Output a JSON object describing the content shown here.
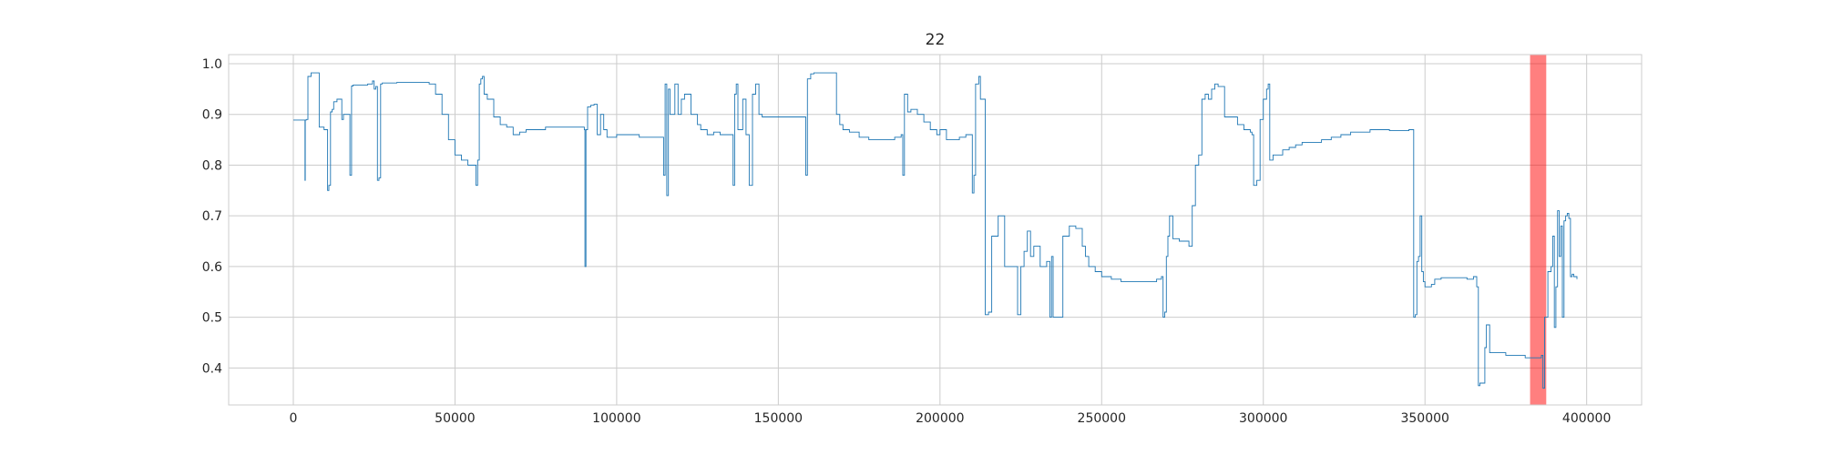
{
  "chart_data": {
    "type": "line",
    "title": "22",
    "xlabel": "",
    "ylabel": "",
    "xlim": [
      -20000,
      417000
    ],
    "ylim": [
      0.327,
      1.018
    ],
    "xticks": [
      0,
      50000,
      100000,
      150000,
      200000,
      250000,
      300000,
      350000,
      400000
    ],
    "xtick_labels": [
      "0",
      "50000",
      "100000",
      "150000",
      "200000",
      "250000",
      "300000",
      "350000",
      "400000"
    ],
    "yticks": [
      0.4,
      0.5,
      0.6,
      0.7,
      0.8,
      0.9,
      1.0
    ],
    "ytick_labels": [
      "0.4",
      "0.5",
      "0.6",
      "0.7",
      "0.8",
      "0.9",
      "1.0"
    ],
    "grid": true,
    "series_color": "#1f77b4",
    "highlight": {
      "x_start": 382500,
      "x_end": 387500,
      "color": "#ff0000",
      "opacity": 0.5
    },
    "series": [
      {
        "x": [
          0,
          3500,
          3600,
          3700,
          4000,
          4500,
          5500,
          7500,
          8000,
          9500,
          10500,
          10600,
          11000,
          11500,
          12000,
          12500,
          13500,
          15000,
          15500,
          17500,
          18000,
          18500,
          19000,
          19500,
          21000,
          23000,
          24500,
          25000,
          25500,
          26000,
          26500,
          27000,
          27500,
          28000,
          32000,
          36000,
          39000,
          42000,
          44000,
          46000,
          48000,
          50000,
          52000,
          54000,
          56000,
          56500,
          57000,
          57500,
          58000,
          58500,
          59000,
          60000,
          62000,
          64000,
          66000,
          68000,
          70000,
          72000,
          75000,
          78000,
          82000,
          86000,
          89000,
          90000,
          90200,
          90500,
          91000,
          92000,
          93000,
          94000,
          95000,
          96000,
          97000,
          100000,
          103000,
          107000,
          110000,
          114000,
          114500,
          115000,
          115500,
          116000,
          116500,
          117000,
          118000,
          119000,
          120000,
          121000,
          123000,
          125000,
          126000,
          128000,
          130000,
          132000,
          134000,
          136000,
          136500,
          137000,
          137500,
          138000,
          139000,
          140000,
          141000,
          142000,
          143000,
          144000,
          145000,
          146000,
          147000,
          148000,
          150000,
          153000,
          156000,
          158000,
          158500,
          159000,
          160000,
          161000,
          163000,
          165000,
          167000,
          168000,
          169000,
          170000,
          172000,
          175000,
          178000,
          182000,
          186000,
          188000,
          188500,
          189000,
          190000,
          191000,
          193000,
          195000,
          197000,
          199000,
          200000,
          202000,
          204000,
          206000,
          208000,
          209000,
          209500,
          210000,
          210500,
          211000,
          212000,
          212500,
          213000,
          214000,
          215000,
          216000,
          218000,
          220000,
          222000,
          222500,
          223000,
          224000,
          225000,
          226000,
          227000,
          228000,
          229000,
          230000,
          231000,
          232000,
          233000,
          234000,
          234500,
          235000,
          236000,
          238000,
          240000,
          242000,
          243000,
          244000,
          245000,
          246000,
          248000,
          250000,
          253000,
          256000,
          259000,
          262000,
          265000,
          267000,
          268000,
          268500,
          269000,
          269500,
          270000,
          270500,
          271000,
          272000,
          274000,
          276000,
          277000,
          278000,
          279000,
          280000,
          281000,
          282000,
          283000,
          284000,
          285000,
          286000,
          288000,
          290000,
          292000,
          294000,
          296000,
          296500,
          297000,
          298000,
          299000,
          300000,
          301000,
          301500,
          302000,
          303000,
          304000,
          306000,
          308000,
          310000,
          312000,
          315000,
          318000,
          321000,
          324000,
          327000,
          330000,
          333000,
          336000,
          339000,
          342000,
          345000,
          346000,
          346500,
          347000,
          347500,
          348000,
          348500,
          349000,
          349500,
          350000,
          351000,
          352000,
          353000,
          355000,
          358000,
          361000,
          363000,
          364000,
          365000,
          366000,
          366500,
          367000,
          368000,
          368500,
          369000,
          370000,
          372000,
          375000,
          378000,
          381000,
          382500,
          384000,
          385000,
          386000,
          386500,
          387000,
          388000,
          389000,
          389500,
          390000,
          390500,
          391000,
          391500,
          392000,
          392500,
          393000,
          393500,
          394000,
          394500,
          395000,
          395500,
          396000,
          397000
        ],
        "y": [
          0.889,
          0.889,
          0.77,
          0.889,
          0.89,
          0.975,
          0.982,
          0.982,
          0.875,
          0.87,
          0.87,
          0.75,
          0.76,
          0.905,
          0.91,
          0.925,
          0.93,
          0.89,
          0.9,
          0.78,
          0.956,
          0.958,
          0.958,
          0.958,
          0.958,
          0.96,
          0.966,
          0.95,
          0.955,
          0.77,
          0.775,
          0.96,
          0.962,
          0.962,
          0.963,
          0.963,
          0.963,
          0.96,
          0.94,
          0.9,
          0.85,
          0.82,
          0.81,
          0.8,
          0.8,
          0.76,
          0.81,
          0.96,
          0.97,
          0.975,
          0.94,
          0.93,
          0.895,
          0.88,
          0.875,
          0.86,
          0.865,
          0.87,
          0.87,
          0.875,
          0.875,
          0.875,
          0.875,
          0.87,
          0.6,
          0.87,
          0.915,
          0.918,
          0.92,
          0.86,
          0.9,
          0.87,
          0.855,
          0.86,
          0.86,
          0.855,
          0.855,
          0.855,
          0.78,
          0.96,
          0.74,
          0.95,
          0.9,
          0.9,
          0.96,
          0.9,
          0.93,
          0.94,
          0.9,
          0.88,
          0.87,
          0.86,
          0.865,
          0.86,
          0.86,
          0.76,
          0.94,
          0.96,
          0.87,
          0.87,
          0.93,
          0.86,
          0.76,
          0.94,
          0.96,
          0.9,
          0.895,
          0.895,
          0.895,
          0.895,
          0.895,
          0.895,
          0.895,
          0.895,
          0.78,
          0.97,
          0.98,
          0.982,
          0.982,
          0.982,
          0.982,
          0.9,
          0.88,
          0.87,
          0.865,
          0.855,
          0.85,
          0.85,
          0.855,
          0.86,
          0.78,
          0.94,
          0.905,
          0.91,
          0.9,
          0.885,
          0.87,
          0.86,
          0.87,
          0.85,
          0.85,
          0.855,
          0.86,
          0.86,
          0.86,
          0.745,
          0.78,
          0.96,
          0.975,
          0.93,
          0.93,
          0.505,
          0.51,
          0.66,
          0.7,
          0.6,
          0.6,
          0.6,
          0.6,
          0.505,
          0.6,
          0.63,
          0.67,
          0.62,
          0.64,
          0.64,
          0.6,
          0.6,
          0.61,
          0.5,
          0.62,
          0.5,
          0.5,
          0.66,
          0.68,
          0.675,
          0.675,
          0.64,
          0.62,
          0.6,
          0.59,
          0.58,
          0.575,
          0.57,
          0.57,
          0.57,
          0.57,
          0.575,
          0.575,
          0.58,
          0.5,
          0.51,
          0.62,
          0.66,
          0.7,
          0.655,
          0.65,
          0.65,
          0.64,
          0.72,
          0.8,
          0.82,
          0.93,
          0.94,
          0.93,
          0.95,
          0.96,
          0.955,
          0.895,
          0.895,
          0.88,
          0.87,
          0.865,
          0.86,
          0.76,
          0.77,
          0.89,
          0.93,
          0.95,
          0.96,
          0.81,
          0.82,
          0.82,
          0.83,
          0.835,
          0.84,
          0.845,
          0.845,
          0.85,
          0.855,
          0.86,
          0.865,
          0.865,
          0.87,
          0.87,
          0.868,
          0.868,
          0.87,
          0.87,
          0.5,
          0.505,
          0.61,
          0.62,
          0.7,
          0.59,
          0.57,
          0.56,
          0.56,
          0.565,
          0.575,
          0.578,
          0.578,
          0.578,
          0.575,
          0.575,
          0.58,
          0.56,
          0.365,
          0.37,
          0.37,
          0.44,
          0.485,
          0.43,
          0.43,
          0.425,
          0.425,
          0.42,
          0.42,
          0.42,
          0.42,
          0.425,
          0.36,
          0.5,
          0.59,
          0.6,
          0.66,
          0.48,
          0.56,
          0.71,
          0.62,
          0.68,
          0.5,
          0.69,
          0.7,
          0.705,
          0.695,
          0.58,
          0.585,
          0.58,
          0.575
        ]
      }
    ]
  }
}
